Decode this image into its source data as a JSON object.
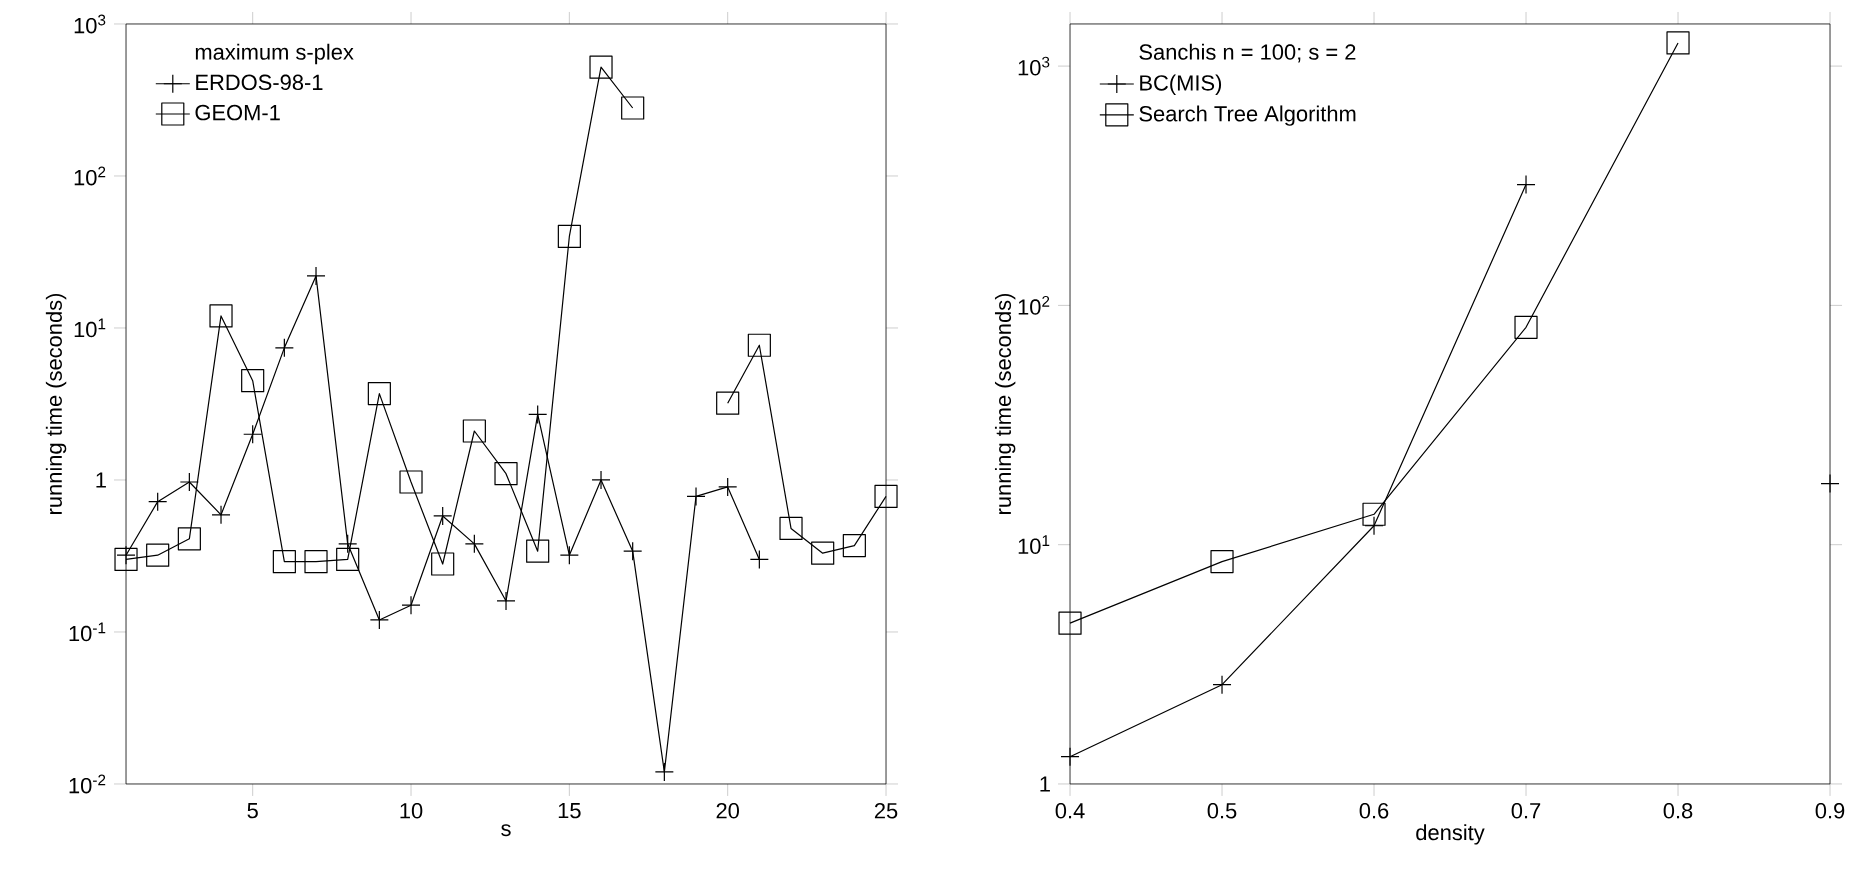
{
  "chart_data": [
    {
      "type": "line",
      "xlabel": "s",
      "ylabel": "running time (seconds)",
      "legend_title": "maximum s-plex",
      "log": "y",
      "legend": "top left",
      "line_style": "solid",
      "x": [
        1,
        2,
        3,
        4,
        5,
        6,
        7,
        8,
        9,
        10,
        11,
        12,
        13,
        14,
        15,
        16,
        17,
        18,
        19,
        20,
        21,
        22,
        23,
        24,
        25
      ],
      "xlim": [
        1,
        25
      ],
      "xticks": [
        5,
        10,
        15,
        20,
        25
      ],
      "ylim": [
        0.01,
        1000
      ],
      "yticks": [
        {
          "value": 0.01,
          "label": "10$^{-2}$"
        },
        {
          "value": 0.1,
          "label": "10$^{-1}$"
        },
        1,
        {
          "value": 10,
          "label": "10$^{1}$"
        },
        {
          "value": 100,
          "label": "10$^{2}$"
        },
        {
          "value": 1000,
          "label": "10$^{3}$"
        }
      ],
      "series": [
        {
          "name": "ERDOS-98-1",
          "color": "#000000",
          "marker": "cross",
          "values": [
            0.32,
            0.72,
            0.97,
            0.59,
            2.0,
            7.4,
            22,
            0.38,
            0.12,
            0.15,
            0.58,
            0.38,
            0.16,
            2.7,
            0.32,
            1.0,
            0.34,
            0.012,
            0.78,
            0.9,
            0.3,
            null,
            null,
            null,
            null
          ]
        },
        {
          "name": "GEOM-1",
          "color": "#000000",
          "marker": "square",
          "values": [
            0.3,
            0.32,
            0.41,
            12,
            4.5,
            0.29,
            0.29,
            0.3,
            3.7,
            0.97,
            0.28,
            2.1,
            1.1,
            0.34,
            40,
            520,
            280,
            null,
            null,
            3.2,
            7.7,
            0.48,
            0.33,
            0.37,
            0.78
          ]
        }
      ]
    },
    {
      "type": "line",
      "xlabel": "density",
      "ylabel": "running time (seconds)",
      "legend_title": "Sanchis n = 100; s = 2",
      "log": "y",
      "legend": "top left",
      "line_style": "solid",
      "x": [
        0.4,
        0.5,
        0.6,
        0.7,
        0.8,
        0.9
      ],
      "xlim": [
        0.4,
        0.9
      ],
      "xticks": [
        0.4,
        0.5,
        0.6,
        0.7,
        0.8,
        0.9
      ],
      "ylim": [
        1,
        1500
      ],
      "yticks": [
        1,
        {
          "value": 10,
          "label": "10$^{1}$"
        },
        {
          "value": 100,
          "label": "10$^{2}$"
        },
        {
          "value": 1000,
          "label": "10$^{3}$"
        }
      ],
      "series": [
        {
          "name": "BC(MIS)",
          "color": "#000000",
          "marker": "cross",
          "values": [
            1.3,
            2.6,
            12,
            320,
            null,
            18
          ]
        },
        {
          "name": "Search Tree Algorithm",
          "color": "#000000",
          "marker": "square",
          "values": [
            4.7,
            8.5,
            13.4,
            81,
            1250,
            null
          ]
        }
      ]
    }
  ]
}
